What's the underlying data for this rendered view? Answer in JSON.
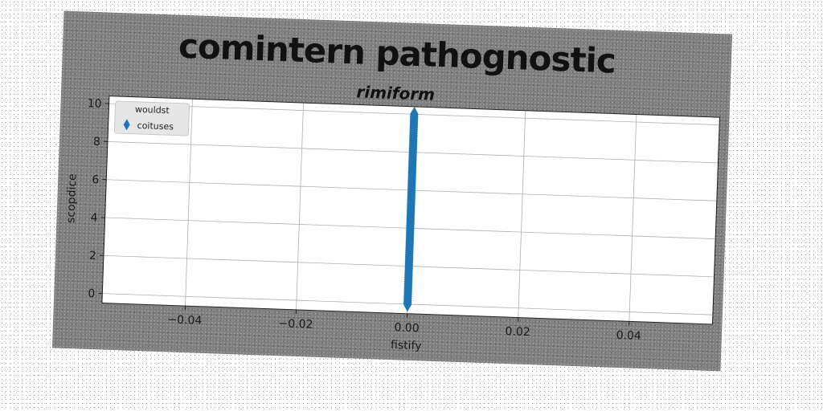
{
  "chart_data": {
    "type": "scatter",
    "title": "comintern pathognostic",
    "subtitle": "rimiform",
    "xlabel": "fistify",
    "ylabel": "scopdice",
    "xlim": [
      -0.055,
      0.055
    ],
    "ylim": [
      -0.5,
      10.4
    ],
    "xticks": [
      -0.04,
      -0.02,
      0.0,
      0.02,
      0.04
    ],
    "xtick_labels": [
      "−0.04",
      "−0.02",
      "0.00",
      "0.02",
      "0.04"
    ],
    "yticks": [
      0,
      2,
      4,
      6,
      8,
      10
    ],
    "ytick_labels": [
      "0",
      "2",
      "4",
      "6",
      "8",
      "10"
    ],
    "grid": true,
    "legend": {
      "title": "wouldst",
      "placement": "top-left"
    },
    "series": [
      {
        "name": "coituses",
        "marker": "thin_diamond",
        "color": "#1f77b4",
        "x": [
          0,
          0,
          0,
          0,
          0,
          0,
          0,
          0,
          0,
          0,
          0,
          0,
          0,
          0,
          0,
          0,
          0,
          0,
          0,
          0,
          0,
          0,
          0,
          0,
          0,
          0,
          0,
          0,
          0,
          0,
          0,
          0,
          0,
          0,
          0,
          0,
          0,
          0,
          0,
          0,
          0,
          0,
          0,
          0,
          0,
          0,
          0,
          0,
          0,
          0,
          0,
          0,
          0,
          0,
          0,
          0,
          0,
          0,
          0,
          0,
          0,
          0,
          0,
          0,
          0,
          0,
          0,
          0,
          0,
          0,
          0,
          0,
          0,
          0,
          0,
          0,
          0,
          0,
          0,
          0,
          0,
          0,
          0,
          0,
          0,
          0,
          0,
          0,
          0,
          0,
          0,
          0,
          0,
          0,
          0,
          0,
          0,
          0,
          0,
          0,
          0
        ],
        "y": [
          0.0,
          0.1,
          0.2,
          0.3,
          0.4,
          0.5,
          0.6,
          0.7,
          0.8,
          0.9,
          1.0,
          1.1,
          1.2,
          1.3,
          1.4,
          1.5,
          1.6,
          1.7,
          1.8,
          1.9,
          2.0,
          2.1,
          2.2,
          2.3,
          2.4,
          2.5,
          2.6,
          2.7,
          2.8,
          2.9,
          3.0,
          3.1,
          3.2,
          3.3,
          3.4,
          3.5,
          3.6,
          3.7,
          3.8,
          3.9,
          4.0,
          4.1,
          4.2,
          4.3,
          4.4,
          4.5,
          4.6,
          4.7,
          4.8,
          4.9,
          5.0,
          5.1,
          5.2,
          5.3,
          5.4,
          5.5,
          5.6,
          5.7,
          5.8,
          5.9,
          6.0,
          6.1,
          6.2,
          6.3,
          6.4,
          6.5,
          6.6,
          6.7,
          6.8,
          6.9,
          7.0,
          7.1,
          7.2,
          7.3,
          7.4,
          7.5,
          7.6,
          7.7,
          7.8,
          7.9,
          8.0,
          8.1,
          8.2,
          8.3,
          8.4,
          8.5,
          8.6,
          8.7,
          8.8,
          8.9,
          9.0,
          9.1,
          9.2,
          9.3,
          9.4,
          9.5,
          9.6,
          9.7,
          9.8,
          9.9,
          10.0
        ]
      }
    ]
  }
}
